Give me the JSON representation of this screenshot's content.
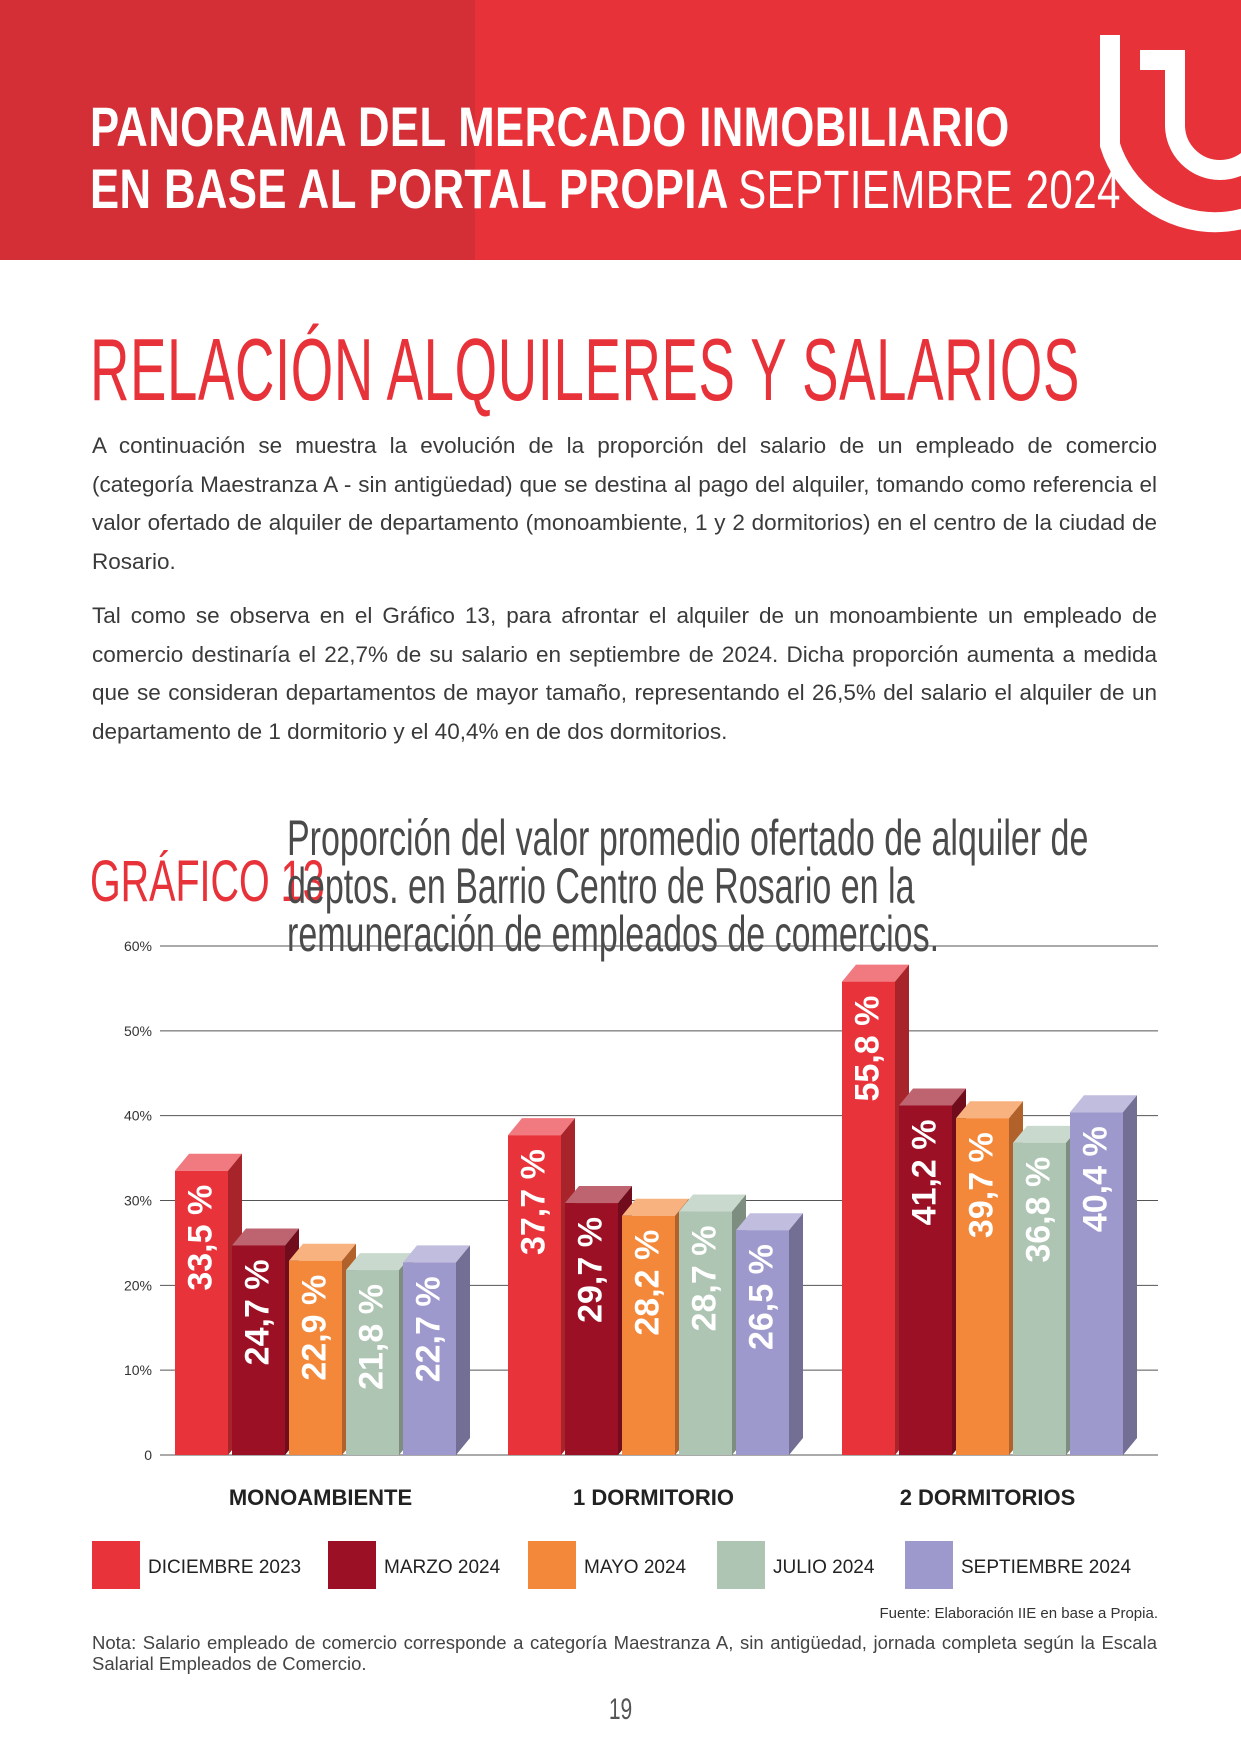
{
  "header": {
    "title_line1": "PANORAMA DEL MERCADO INMOBILIARIO",
    "title_line2": "EN BASE AL PORTAL PROPIA",
    "title_period": "SEPTIEMBRE 2024"
  },
  "section": {
    "title": "RELACIÓN ALQUILERES Y SALARIOS"
  },
  "paragraphs": [
    "A continuación se muestra la evolución de la proporción del salario de un empleado de comercio (categoría Maestranza A - sin antigüedad) que se destina al pago del alquiler, tomando como referencia el valor ofertado de alquiler de departamento (monoambiente, 1 y 2 dormitorios) en el centro de la ciudad de Rosario.",
    "Tal como se observa en el Gráfico 13, para afrontar el alquiler de un monoambiente un empleado de comercio destinaría el 22,7% de su salario en septiembre de 2024. Dicha proporción aumenta a medida que se consideran departamentos de mayor tamaño, representando el 26,5% del salario el alquiler de un departamento de 1 dormitorio y el 40,4% en de dos dormitorios."
  ],
  "chart_label": "GRÁFICO 13",
  "chart_data": {
    "type": "bar",
    "title": "Proporción del valor promedio ofertado de alquiler de deptos. en Barrio Centro de Rosario en la remuneración de empleados de comercios.",
    "categories": [
      "MONOAMBIENTE",
      "1 DORMITORIO",
      "2 DORMITORIOS"
    ],
    "series": [
      {
        "name": "DICIEMBRE 2023",
        "values": [
          33.5,
          37.7,
          55.8
        ],
        "labels": [
          "33,5 %",
          "37,7 %",
          "55,8 %"
        ],
        "color": "#e8333b"
      },
      {
        "name": "MARZO 2024",
        "values": [
          24.7,
          29.7,
          41.2
        ],
        "labels": [
          "24,7 %",
          "29,7 %",
          "41,2 %"
        ],
        "color": "#9b1025"
      },
      {
        "name": "MAYO 2024",
        "values": [
          22.9,
          28.2,
          39.7
        ],
        "labels": [
          "22,9 %",
          "28,2 %",
          "39,7 %"
        ],
        "color": "#f4883a"
      },
      {
        "name": "JULIO 2024",
        "values": [
          21.8,
          28.7,
          36.8
        ],
        "labels": [
          "21,8 %",
          "28,7 %",
          "36,8 %"
        ],
        "color": "#adc5b2"
      },
      {
        "name": "SEPTIEMBRE 2024",
        "values": [
          22.7,
          26.5,
          40.4
        ],
        "labels": [
          "22,7 %",
          "26,5 %",
          "40,4 %"
        ],
        "color": "#9e99cd"
      }
    ],
    "yticks": [
      "0",
      "10%",
      "20%",
      "30%",
      "40%",
      "50%",
      "60%"
    ],
    "ylim": [
      0,
      60
    ],
    "grid": true,
    "legend_position": "bottom"
  },
  "source": "Fuente: Elaboración IIE en base a Propia.",
  "note": "Nota: Salario empleado de comercio corresponde a categoría Maestranza A, sin antigüedad, jornada completa según la Escala Salarial Empleados de Comercio.",
  "page_number": "19"
}
